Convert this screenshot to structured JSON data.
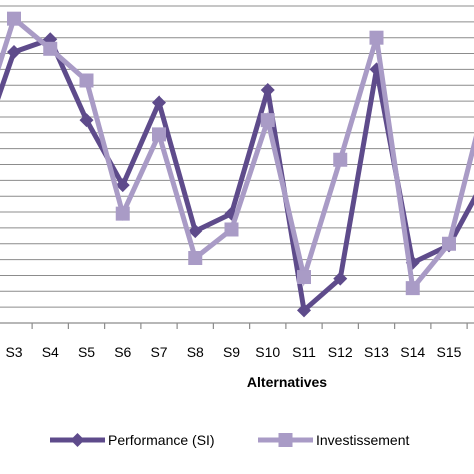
{
  "chart_data": {
    "type": "line",
    "categories": [
      "S3",
      "S4",
      "S5",
      "S6",
      "S7",
      "S8",
      "S9",
      "S10",
      "S11",
      "S12",
      "S13",
      "S14",
      "S15"
    ],
    "xlabel": "Alternatives",
    "ylabel": "",
    "ylim": [
      0,
      20
    ],
    "grid": true,
    "legend_position": "bottom",
    "series": [
      {
        "name": "Performance (SI)",
        "color": "#5e4b8b",
        "marker": "diamond",
        "lead_value": 10.5,
        "values": [
          17.1,
          17.9,
          12.8,
          8.7,
          13.9,
          5.8,
          6.9,
          14.7,
          0.8,
          2.8,
          16.0,
          3.8,
          4.9
        ],
        "trail_value": 9.1
      },
      {
        "name": "Investissement",
        "color": "#a99bc6",
        "marker": "square",
        "lead_value": 12.0,
        "values": [
          19.2,
          17.3,
          15.3,
          6.9,
          11.9,
          4.1,
          5.9,
          12.8,
          2.9,
          10.3,
          18.0,
          2.2,
          5.0
        ],
        "trail_value": 14.0
      }
    ]
  }
}
